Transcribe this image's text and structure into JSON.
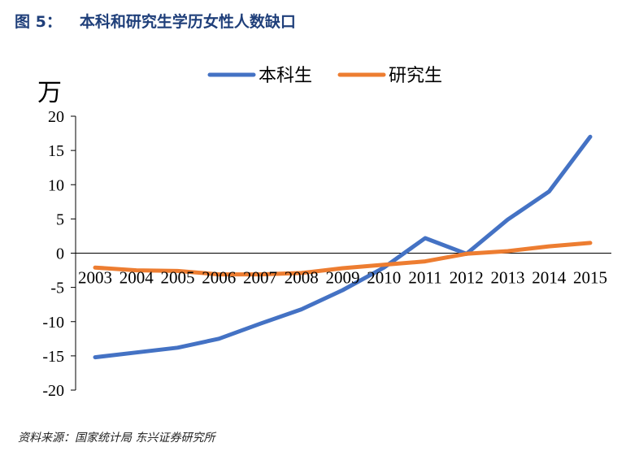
{
  "figure": {
    "label": "图 5：",
    "title": "本科和研究生学历女性人数缺口"
  },
  "source": "资料来源：国家统计局 东兴证券研究所",
  "chart_data": {
    "type": "line",
    "unit": "万",
    "categories": [
      "2003",
      "2004",
      "2005",
      "2006",
      "2007",
      "2008",
      "2009",
      "2010",
      "2011",
      "2012",
      "2013",
      "2014",
      "2015"
    ],
    "ylim": [
      -20,
      20
    ],
    "yticks": [
      20,
      15,
      10,
      5,
      0,
      -5,
      -10,
      -15,
      -20
    ],
    "grid": false,
    "legend_position": "top",
    "series": [
      {
        "name": "本科生",
        "color": "#4472c4",
        "values": [
          -15.2,
          -14.5,
          -13.8,
          -12.5,
          -10.3,
          -8.2,
          -5.4,
          -2.1,
          2.2,
          -0.1,
          4.9,
          9.0,
          17.0
        ]
      },
      {
        "name": "研究生",
        "color": "#ed7d31",
        "values": [
          -2.1,
          -2.5,
          -2.6,
          -3.1,
          -3.1,
          -2.9,
          -2.2,
          -1.7,
          -1.2,
          -0.1,
          0.3,
          1.0,
          1.5
        ]
      }
    ]
  }
}
